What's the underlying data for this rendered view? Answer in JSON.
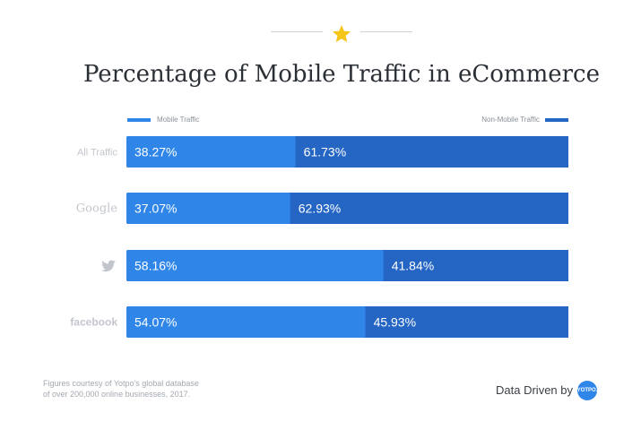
{
  "header": {
    "title": "Percentage of Mobile Traffic in eCommerce",
    "icon": "star-icon",
    "star_color": "#f5c518"
  },
  "legend": {
    "mobile_label": "Mobile Traffic",
    "non_mobile_label": "Non-Mobile Traffic"
  },
  "colors": {
    "mobile": "#2f86e8",
    "non_mobile": "#2566c4",
    "category_label": "#c2c6cc"
  },
  "chart_data": {
    "type": "bar",
    "orientation": "horizontal",
    "stacked": true,
    "title": "Percentage of Mobile Traffic in eCommerce",
    "categories": [
      "All Traffic",
      "Google",
      "twitter",
      "facebook"
    ],
    "category_icons": [
      "",
      "",
      "twitter-bird-icon",
      ""
    ],
    "series": [
      {
        "name": "Mobile Traffic",
        "values": [
          38.27,
          37.07,
          58.16,
          54.07
        ],
        "labels": [
          "38.27%",
          "37.07%",
          "58.16%",
          "54.07%"
        ]
      },
      {
        "name": "Non-Mobile Traffic",
        "values": [
          61.73,
          62.93,
          41.84,
          45.93
        ],
        "labels": [
          "61.73%",
          "62.93%",
          "41.84%",
          "45.93%"
        ]
      }
    ],
    "xlim": [
      0,
      100
    ],
    "grid": false,
    "legend_position": "top"
  },
  "footer": {
    "note_line1": "Figures courtesy of Yotpo's global database",
    "note_line2": "of over 200,000 online businesses, 2017.",
    "brand_text": "Data Driven by",
    "brand_logo_text": "YOTPO."
  }
}
